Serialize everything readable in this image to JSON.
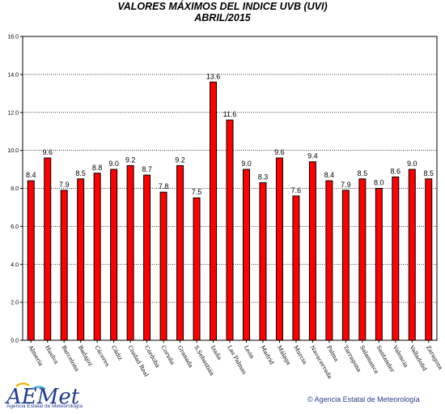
{
  "chart_data": {
    "type": "bar",
    "title": "VALORES MÁXIMOS DEL INDICE UVB (UVI)",
    "subtitle": "ABRIL/2015",
    "categories": [
      "Almería",
      "Huelva",
      "Barcelona",
      "Badajoz",
      "Cáceres",
      "Cádiz",
      "Ciudad Real",
      "Córdoba",
      "Coruña",
      "Granada",
      "S.Sebastián",
      "Izaña",
      "Las Palmas",
      "León",
      "Madrid",
      "Málaga",
      "Murcia",
      "Navacerrada",
      "Palma",
      "Tarragona",
      "Salamanca",
      "Santander",
      "Valencia",
      "Valladolid",
      "Zaragoza"
    ],
    "values": [
      8.4,
      9.6,
      7.9,
      8.5,
      8.8,
      9.0,
      9.2,
      8.7,
      7.8,
      9.2,
      7.5,
      13.6,
      11.6,
      9.0,
      8.3,
      9.6,
      7.6,
      9.4,
      8.4,
      7.9,
      8.5,
      8.0,
      8.6,
      9.0,
      8.5
    ],
    "value_labels": [
      "8.4",
      "9.6",
      "7.9",
      "8.5",
      "8.8",
      "9.0",
      "9.2",
      "8.7",
      "7.8",
      "9.2",
      "7.5",
      "13.6",
      "11.6",
      "9.0",
      "8.3",
      "9.6",
      "7.6",
      "9.4",
      "8.4",
      "7.9",
      "8.5",
      "8.0",
      "8.6",
      "9.0",
      "8.5"
    ],
    "ylim": [
      0,
      16
    ],
    "yticks": [
      "0.0",
      "2.0",
      "4.0",
      "6.0",
      "8.0",
      "10.0",
      "12.0",
      "14.0",
      "16.0"
    ],
    "grid": true,
    "bar_color": "#ff0000"
  },
  "footer": {
    "logo": "AEMet",
    "logo_subtitle": "Agencia Estatal de Meteorología",
    "copyright": "© Agencia Estatal de Meteorología"
  }
}
